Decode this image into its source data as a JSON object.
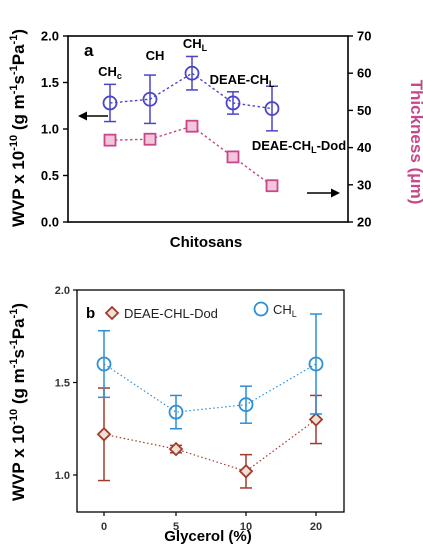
{
  "chart_data": [
    {
      "type": "line",
      "panel_label": "a",
      "categories": [
        "CHc",
        "CH",
        "CHL",
        "DEAE-CHL",
        "DEAE-CHL-Dod"
      ],
      "category_labels": [
        {
          "base": "CH",
          "sub": "c"
        },
        {
          "base": "CH",
          "sub": ""
        },
        {
          "base": "CH",
          "sub": "L"
        },
        {
          "base": "DEAE-CH",
          "sub": "L"
        },
        {
          "base": "DEAE-CH",
          "sub": "L",
          "rest": "-Dod"
        }
      ],
      "xlabel": "Chitosans",
      "ylabel": {
        "left": "WVP x 10",
        "exp": "-10",
        "units": "(g m",
        "m_exp": "-1",
        "s": "s",
        "s_exp": "-1",
        "pa": "Pa",
        "pa_exp": "-1",
        "close": ")"
      },
      "y2label": "Thickness (μm)",
      "ylim": [
        0,
        2
      ],
      "y2lim": [
        20,
        70
      ],
      "y_ticks": [
        "0.0",
        "0.5",
        "1.0",
        "1.5",
        "2.0"
      ],
      "y2_ticks": [
        "20",
        "30",
        "40",
        "50",
        "60",
        "70"
      ],
      "series": [
        {
          "axis": "right",
          "marker": "circle",
          "color": "#4a46c9",
          "values": [
            52,
            53,
            60,
            52,
            50.5
          ],
          "err": [
            5,
            6.5,
            4.5,
            3,
            6
          ]
        },
        {
          "axis": "left",
          "marker": "square",
          "color": "#c8478a",
          "values": [
            0.88,
            0.89,
            1.03,
            0.7,
            0.39
          ],
          "err": [
            0.04,
            0.04,
            0.05,
            0.02,
            0.04
          ]
        }
      ],
      "arrows": [
        "left-axis",
        "right-axis"
      ],
      "colors": {
        "right_axis_label": "#c8478a"
      }
    },
    {
      "type": "line",
      "panel_label": "b",
      "x_ticks": [
        "0",
        "5",
        "10",
        "20"
      ],
      "xlabel": "Glycerol (%)",
      "ylabel": {
        "left": "WVP x 10",
        "exp": "-10",
        "units": "(g m",
        "m_exp": "-1",
        "s": "s",
        "s_exp": "-1",
        "pa": "Pa",
        "pa_exp": "-1",
        "close": ")"
      },
      "ylim": [
        0.8,
        2.0
      ],
      "y_ticks": [
        "1.0",
        "1.5",
        "2.0"
      ],
      "series": [
        {
          "name": "DEAE-CHL-Dod",
          "marker": "diamond",
          "color": "#a33a2a",
          "values": [
            1.22,
            1.14,
            1.02,
            1.3
          ],
          "err": [
            0.25,
            0.02,
            0.09,
            0.13
          ]
        },
        {
          "name": "CHL",
          "name_base": "CH",
          "name_sub": "L",
          "marker": "circle",
          "color": "#2e8fd6",
          "values": [
            1.6,
            1.34,
            1.38,
            1.6
          ],
          "err": [
            0.18,
            0.09,
            0.1,
            0.27
          ]
        }
      ]
    }
  ]
}
